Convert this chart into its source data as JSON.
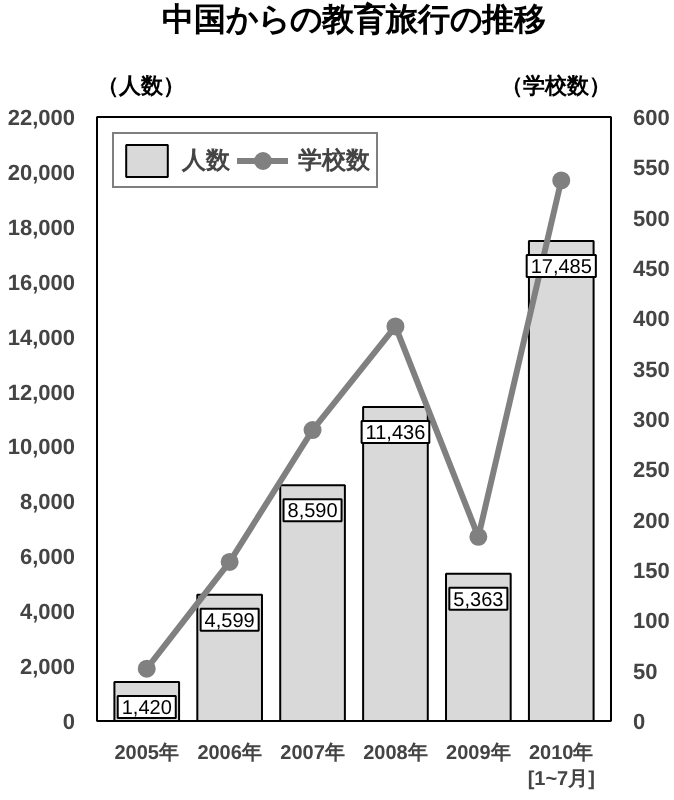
{
  "chart_data": {
    "type": "bar",
    "title": "中国からの教育旅行の推移",
    "ylabel": "（人数）",
    "y2label": "（学校数）",
    "categories": [
      "2005年",
      "2006年",
      "2007年",
      "2008年",
      "2009年",
      "2010年\n[1~7月]"
    ],
    "series": [
      {
        "name": "人数",
        "color": "#d9d9d9",
        "values": [
          1420,
          4599,
          8590,
          11436,
          5363,
          17485
        ],
        "value_labels": [
          "1,420",
          "4,599",
          "8,590",
          "11,436",
          "5,363",
          "17,485"
        ]
      },
      {
        "name": "学校数",
        "type": "line",
        "axis": "y2",
        "color": "#808080",
        "values": [
          52,
          158,
          289,
          392,
          183,
          537
        ]
      }
    ],
    "marker": "circle",
    "ylim": [
      0,
      22000
    ],
    "yticks": [
      0,
      {
        "value": 2000,
        "label": "2,000"
      },
      {
        "value": 4000,
        "label": "4,000"
      },
      {
        "value": 6000,
        "label": "6,000"
      },
      {
        "value": 8000,
        "label": "8,000"
      },
      {
        "value": 10000,
        "label": "10,000"
      },
      {
        "value": 12000,
        "label": "12,000"
      },
      {
        "value": 14000,
        "label": "14,000"
      },
      {
        "value": 16000,
        "label": "16,000"
      },
      {
        "value": 18000,
        "label": "18,000"
      },
      {
        "value": 20000,
        "label": "20,000"
      },
      {
        "value": 22000,
        "label": "22,000"
      }
    ],
    "y2lim": [
      0,
      600
    ],
    "y2ticks": [
      0,
      50,
      100,
      150,
      200,
      250,
      300,
      350,
      400,
      450,
      500,
      550,
      600
    ],
    "legend": "top left"
  }
}
